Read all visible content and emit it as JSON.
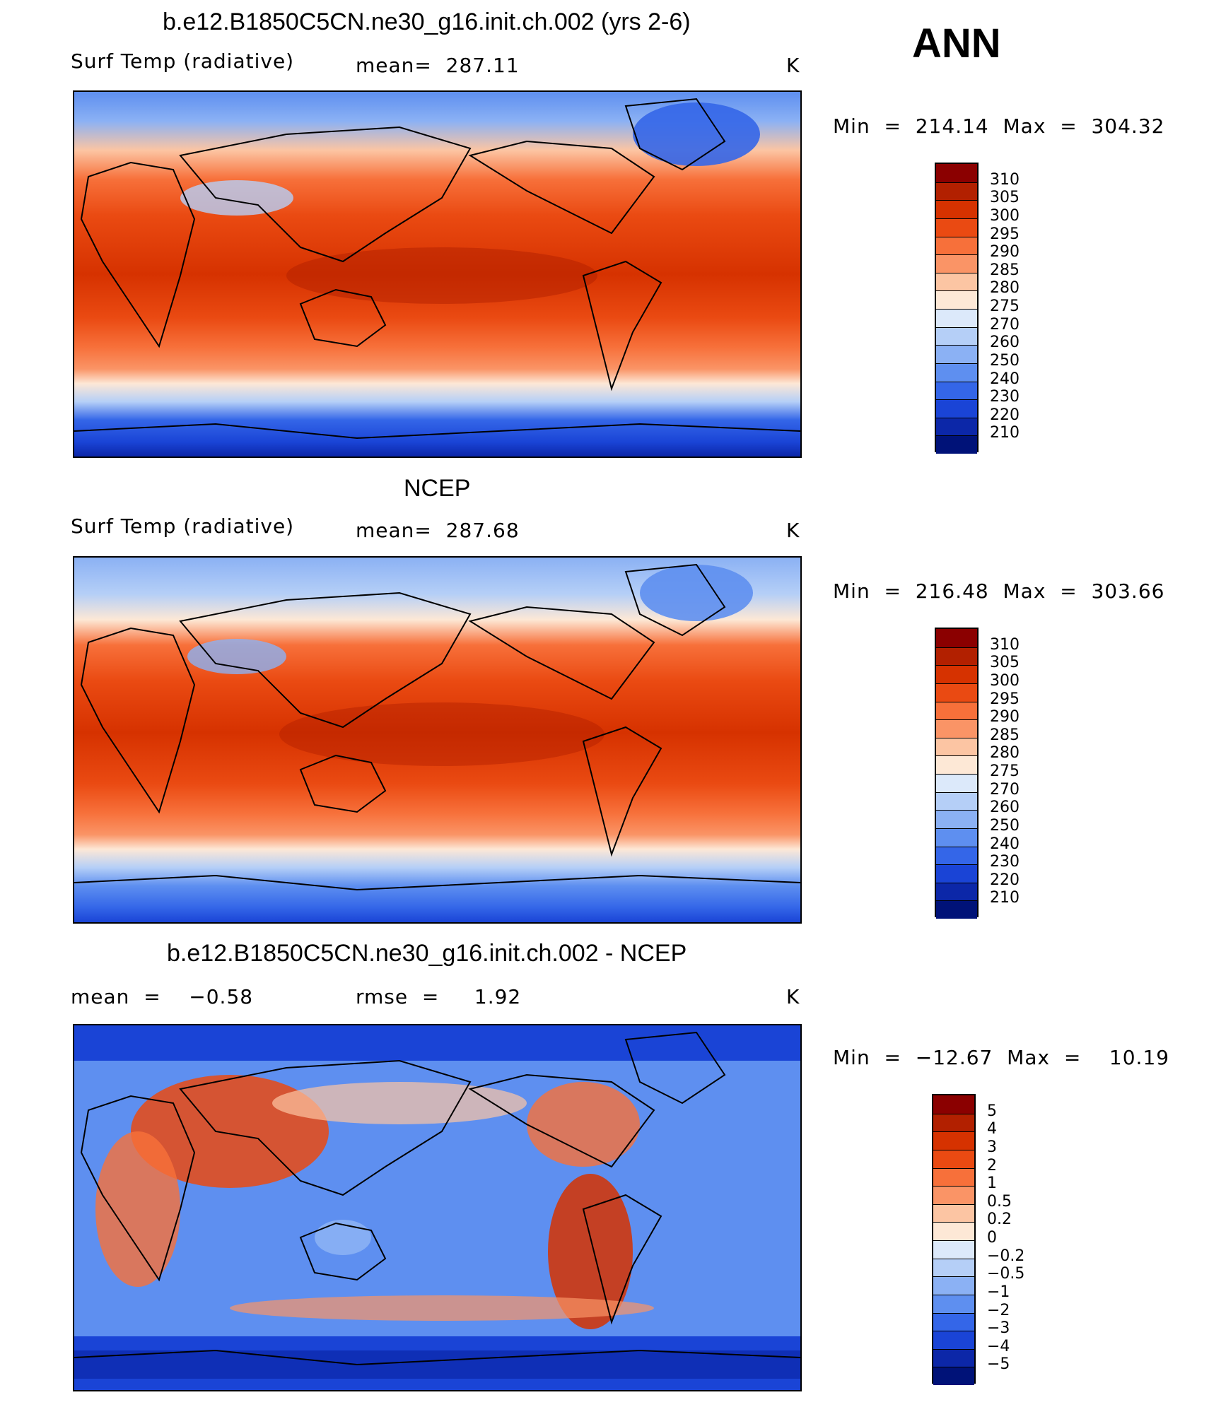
{
  "header": {
    "season": "ANN"
  },
  "panels": [
    {
      "title": "b.e12.B1850C5CN.ne30_g16.init.ch.002 (yrs 2-6)",
      "left_label": "Surf Temp (radiative)",
      "center_label": "mean=  287.11",
      "units": "K",
      "minmax": "Min  =  214.14  Max  =  304.32",
      "levels": [
        "310",
        "305",
        "300",
        "295",
        "290",
        "285",
        "280",
        "275",
        "270",
        "260",
        "250",
        "240",
        "230",
        "220",
        "210"
      ]
    },
    {
      "title": "NCEP",
      "left_label": "Surf Temp (radiative)",
      "center_label": "mean=  287.68",
      "units": "K",
      "minmax": "Min  =  216.48  Max  =  303.66",
      "levels": [
        "310",
        "305",
        "300",
        "295",
        "290",
        "285",
        "280",
        "275",
        "270",
        "260",
        "250",
        "240",
        "230",
        "220",
        "210"
      ]
    },
    {
      "title": "b.e12.B1850C5CN.ne30_g16.init.ch.002 - NCEP",
      "left_label": "mean  =    −0.58",
      "center_label": "rmse  =     1.92",
      "units": "K",
      "minmax": "Min  =  −12.67  Max  =    10.19",
      "levels": [
        "5",
        "4",
        "3",
        "2",
        "1",
        "0.5",
        "0.2",
        "0",
        "−0.2",
        "−0.5",
        "−1",
        "−2",
        "−3",
        "−4",
        "−5"
      ]
    }
  ],
  "colors": {
    "scale_top_to_bottom": [
      "#8b0000",
      "#b22000",
      "#d63200",
      "#ea4a12",
      "#f7703a",
      "#fa9466",
      "#fcc5a3",
      "#fde8d6",
      "#dce9fa",
      "#b5cff7",
      "#8bb1f4",
      "#5e8ff0",
      "#3466e8",
      "#1a44d6",
      "#0c27a8",
      "#001278"
    ]
  }
}
